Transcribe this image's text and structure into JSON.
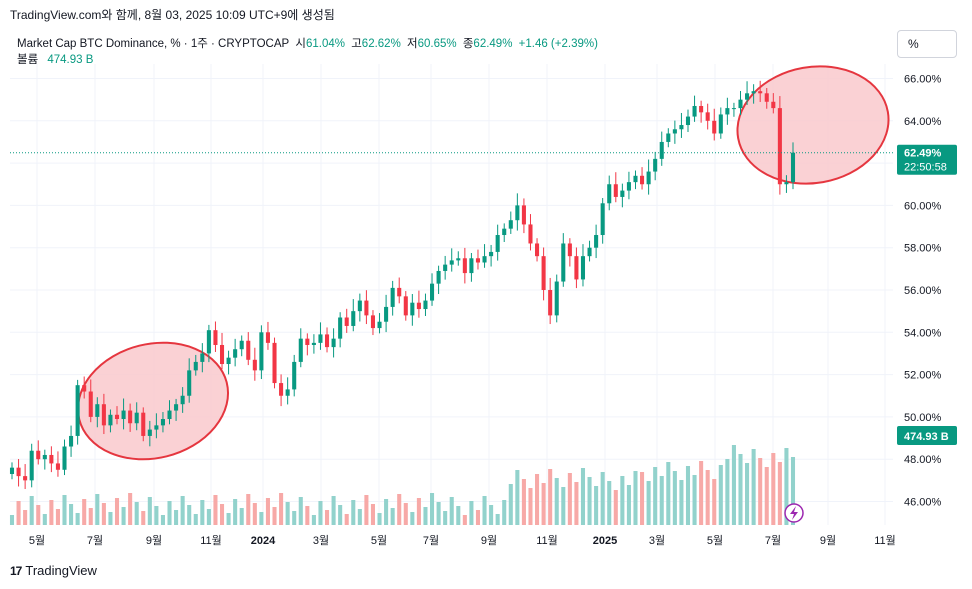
{
  "header": {
    "text": "TradingView.com와 함께, 8월 03, 2025 10:09 UTC+9에 생성됨"
  },
  "legend": {
    "title": "Market Cap BTC Dominance, % · 1주 · CRYPTOCAP",
    "open_label": "시",
    "open": "61.04%",
    "high_label": "고",
    "high": "62.62%",
    "low_label": "저",
    "low": "60.65%",
    "close_label": "종",
    "close": "62.49%",
    "change": "+1.46 (+2.39%)",
    "volume_label": "볼륨",
    "volume": "474.93 B"
  },
  "scale_button": {
    "label": "%"
  },
  "price_badge": {
    "price": "62.49%",
    "countdown": "22:50:58"
  },
  "volume_badge": {
    "label": "474.93 B"
  },
  "colors": {
    "up": "#089981",
    "down": "#f23645",
    "vol_up": "#92d2cc",
    "vol_down": "#f7a9a7",
    "circle_fill": "#f9c9cc",
    "circle_stroke": "#e5363f"
  },
  "footer": {
    "brand": "TradingView",
    "logo_icon": "tv-logo-icon"
  },
  "chart_data": {
    "type": "candlestick",
    "title": "Market Cap BTC Dominance, % · 1주 · CRYPTOCAP",
    "ylim": [
      45,
      67
    ],
    "y_ticks": [
      "46.00%",
      "48.00%",
      "50.00%",
      "52.00%",
      "54.00%",
      "56.00%",
      "58.00%",
      "60.00%",
      "62.00%",
      "64.00%",
      "66.00%"
    ],
    "x_ticks": [
      {
        "label": "5월",
        "major": false
      },
      {
        "label": "7월",
        "major": false
      },
      {
        "label": "9월",
        "major": false
      },
      {
        "label": "11월",
        "major": false
      },
      {
        "label": "2024",
        "major": true
      },
      {
        "label": "3월",
        "major": false
      },
      {
        "label": "5월",
        "major": false
      },
      {
        "label": "7월",
        "major": false
      },
      {
        "label": "9월",
        "major": false
      },
      {
        "label": "11월",
        "major": false
      },
      {
        "label": "2025",
        "major": true
      },
      {
        "label": "3월",
        "major": false
      },
      {
        "label": "5월",
        "major": false
      },
      {
        "label": "7월",
        "major": false
      },
      {
        "label": "9월",
        "major": false
      },
      {
        "label": "11월",
        "major": false
      }
    ],
    "grid": true,
    "last_price": 62.49,
    "closes": [
      47.6,
      47.2,
      47.0,
      48.4,
      48.0,
      48.2,
      47.8,
      47.5,
      48.6,
      49.1,
      51.5,
      51.2,
      50.0,
      50.6,
      49.6,
      50.1,
      49.9,
      50.3,
      49.7,
      50.2,
      49.1,
      49.4,
      49.6,
      49.9,
      50.3,
      50.6,
      51.0,
      52.2,
      52.6,
      53.0,
      54.1,
      53.4,
      52.5,
      52.8,
      53.2,
      53.6,
      52.7,
      52.2,
      54.0,
      53.5,
      51.6,
      51.0,
      51.3,
      52.6,
      53.7,
      53.4,
      53.5,
      53.9,
      53.3,
      53.7,
      54.7,
      54.3,
      55.0,
      55.5,
      54.8,
      54.2,
      54.5,
      55.2,
      56.1,
      55.7,
      54.8,
      55.4,
      55.1,
      55.5,
      56.3,
      56.9,
      57.2,
      57.4,
      57.5,
      56.8,
      57.5,
      57.3,
      57.6,
      57.8,
      58.6,
      58.9,
      59.3,
      60.0,
      59.1,
      58.2,
      57.6,
      56.0,
      54.8,
      56.4,
      58.2,
      57.6,
      56.5,
      57.6,
      58.0,
      58.6,
      60.1,
      61.0,
      60.4,
      60.7,
      61.1,
      61.4,
      61.0,
      61.6,
      62.2,
      63.0,
      63.4,
      63.6,
      63.8,
      64.2,
      64.7,
      64.4,
      64.0,
      63.4,
      64.3,
      64.6,
      64.6,
      65.0,
      65.3,
      65.4,
      65.3,
      64.9,
      64.6,
      61.0,
      61.1,
      62.49
    ],
    "volume_bars": 120
  }
}
